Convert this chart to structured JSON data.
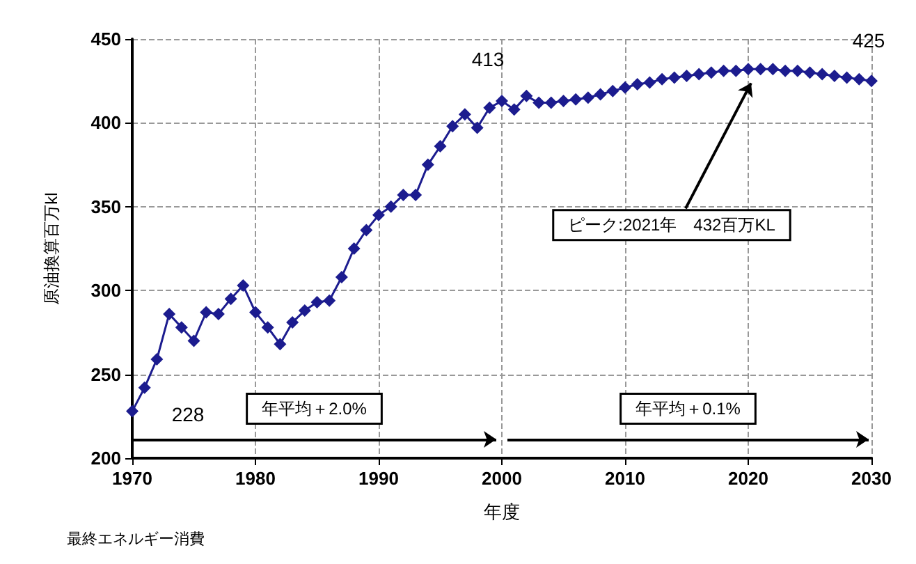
{
  "chart_data": {
    "type": "line",
    "xlabel": "年度",
    "ylabel": "原油換算百万kl",
    "x": [
      1970,
      1971,
      1972,
      1973,
      1974,
      1975,
      1976,
      1977,
      1978,
      1979,
      1980,
      1981,
      1982,
      1983,
      1984,
      1985,
      1986,
      1987,
      1988,
      1989,
      1990,
      1991,
      1992,
      1993,
      1994,
      1995,
      1996,
      1997,
      1998,
      1999,
      2000,
      2001,
      2002,
      2003,
      2004,
      2005,
      2006,
      2007,
      2008,
      2009,
      2010,
      2011,
      2012,
      2013,
      2014,
      2015,
      2016,
      2017,
      2018,
      2019,
      2020,
      2021,
      2022,
      2023,
      2024,
      2025,
      2026,
      2027,
      2028,
      2029,
      2030
    ],
    "series": [
      {
        "color": "#1c1c8f",
        "values": [
          228,
          242,
          259,
          286,
          278,
          270,
          287,
          286,
          295,
          303,
          287,
          278,
          268,
          281,
          288,
          293,
          294,
          308,
          325,
          336,
          345,
          350,
          357,
          357,
          375,
          386,
          398,
          405,
          397,
          409,
          413,
          408,
          416,
          412,
          412,
          413,
          414,
          415,
          417,
          419,
          421,
          423,
          424,
          426,
          427,
          428,
          429,
          430,
          431,
          431,
          432,
          432,
          432,
          431,
          431,
          430,
          429,
          428,
          427,
          426,
          425
        ]
      }
    ],
    "xlim": [
      1970,
      2030
    ],
    "xticks": [
      1970,
      1980,
      1990,
      2000,
      2010,
      2020,
      2030
    ],
    "ylim": [
      200,
      450
    ],
    "yticks": [
      200,
      250,
      300,
      350,
      400,
      450
    ],
    "grid": true,
    "marker": "diamond",
    "line_style": "solid",
    "annotations": [
      {
        "text": "228",
        "x": 1970,
        "y": 228
      },
      {
        "text": "413",
        "x": 2000,
        "y": 413
      },
      {
        "text": "425",
        "x": 2030,
        "y": 425
      },
      "ピーク:2021年　432百万KL",
      "年平均＋2.0%",
      "年平均＋0.1%",
      "最終エネルギー消費"
    ]
  }
}
